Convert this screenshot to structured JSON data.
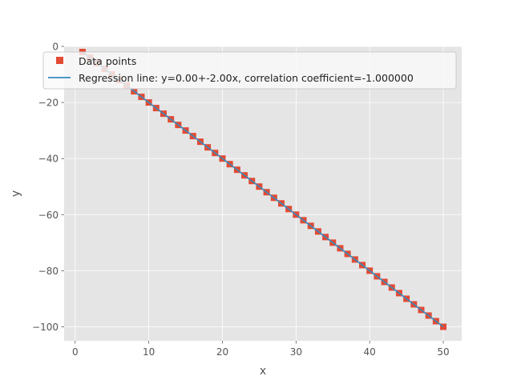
{
  "chart_data": {
    "type": "scatter",
    "title": "",
    "xlabel": "x",
    "ylabel": "y",
    "xlim": [
      -1.5,
      52.5
    ],
    "ylim": [
      -105,
      0
    ],
    "xticks": [
      0,
      10,
      20,
      30,
      40,
      50
    ],
    "yticks": [
      0,
      -20,
      -40,
      -60,
      -80,
      -100
    ],
    "xtick_labels": [
      "0",
      "10",
      "20",
      "30",
      "40",
      "50"
    ],
    "ytick_labels": [
      "0",
      "−20",
      "−40",
      "−60",
      "−80",
      "−100"
    ],
    "grid": true,
    "legend_placement": "upper-left",
    "series": [
      {
        "name": "Data points",
        "kind": "scatter",
        "marker": "square",
        "color": "#E24A33",
        "x": [
          1,
          2,
          3,
          4,
          5,
          6,
          7,
          8,
          9,
          10,
          11,
          12,
          13,
          14,
          15,
          16,
          17,
          18,
          19,
          20,
          21,
          22,
          23,
          24,
          25,
          26,
          27,
          28,
          29,
          30,
          31,
          32,
          33,
          34,
          35,
          36,
          37,
          38,
          39,
          40,
          41,
          42,
          43,
          44,
          45,
          46,
          47,
          48,
          49,
          50
        ],
        "y": [
          -2,
          -4,
          -6,
          -8,
          -10,
          -12,
          -14,
          -16,
          -18,
          -20,
          -22,
          -24,
          -26,
          -28,
          -30,
          -32,
          -34,
          -36,
          -38,
          -40,
          -42,
          -44,
          -46,
          -48,
          -50,
          -52,
          -54,
          -56,
          -58,
          -60,
          -62,
          -64,
          -66,
          -68,
          -70,
          -72,
          -74,
          -76,
          -78,
          -80,
          -82,
          -84,
          -86,
          -88,
          -90,
          -92,
          -94,
          -96,
          -98,
          -100
        ]
      },
      {
        "name": "Regression line: y=0.00+-2.00x, correlation coefficient=-1.000000",
        "kind": "line",
        "color": "#348ABD",
        "x": [
          1,
          50
        ],
        "y": [
          -2,
          -100
        ]
      }
    ]
  },
  "colors": {
    "axes_background": "#E5E5E5",
    "grid": "#FFFFFF",
    "tick_text": "#555555"
  }
}
